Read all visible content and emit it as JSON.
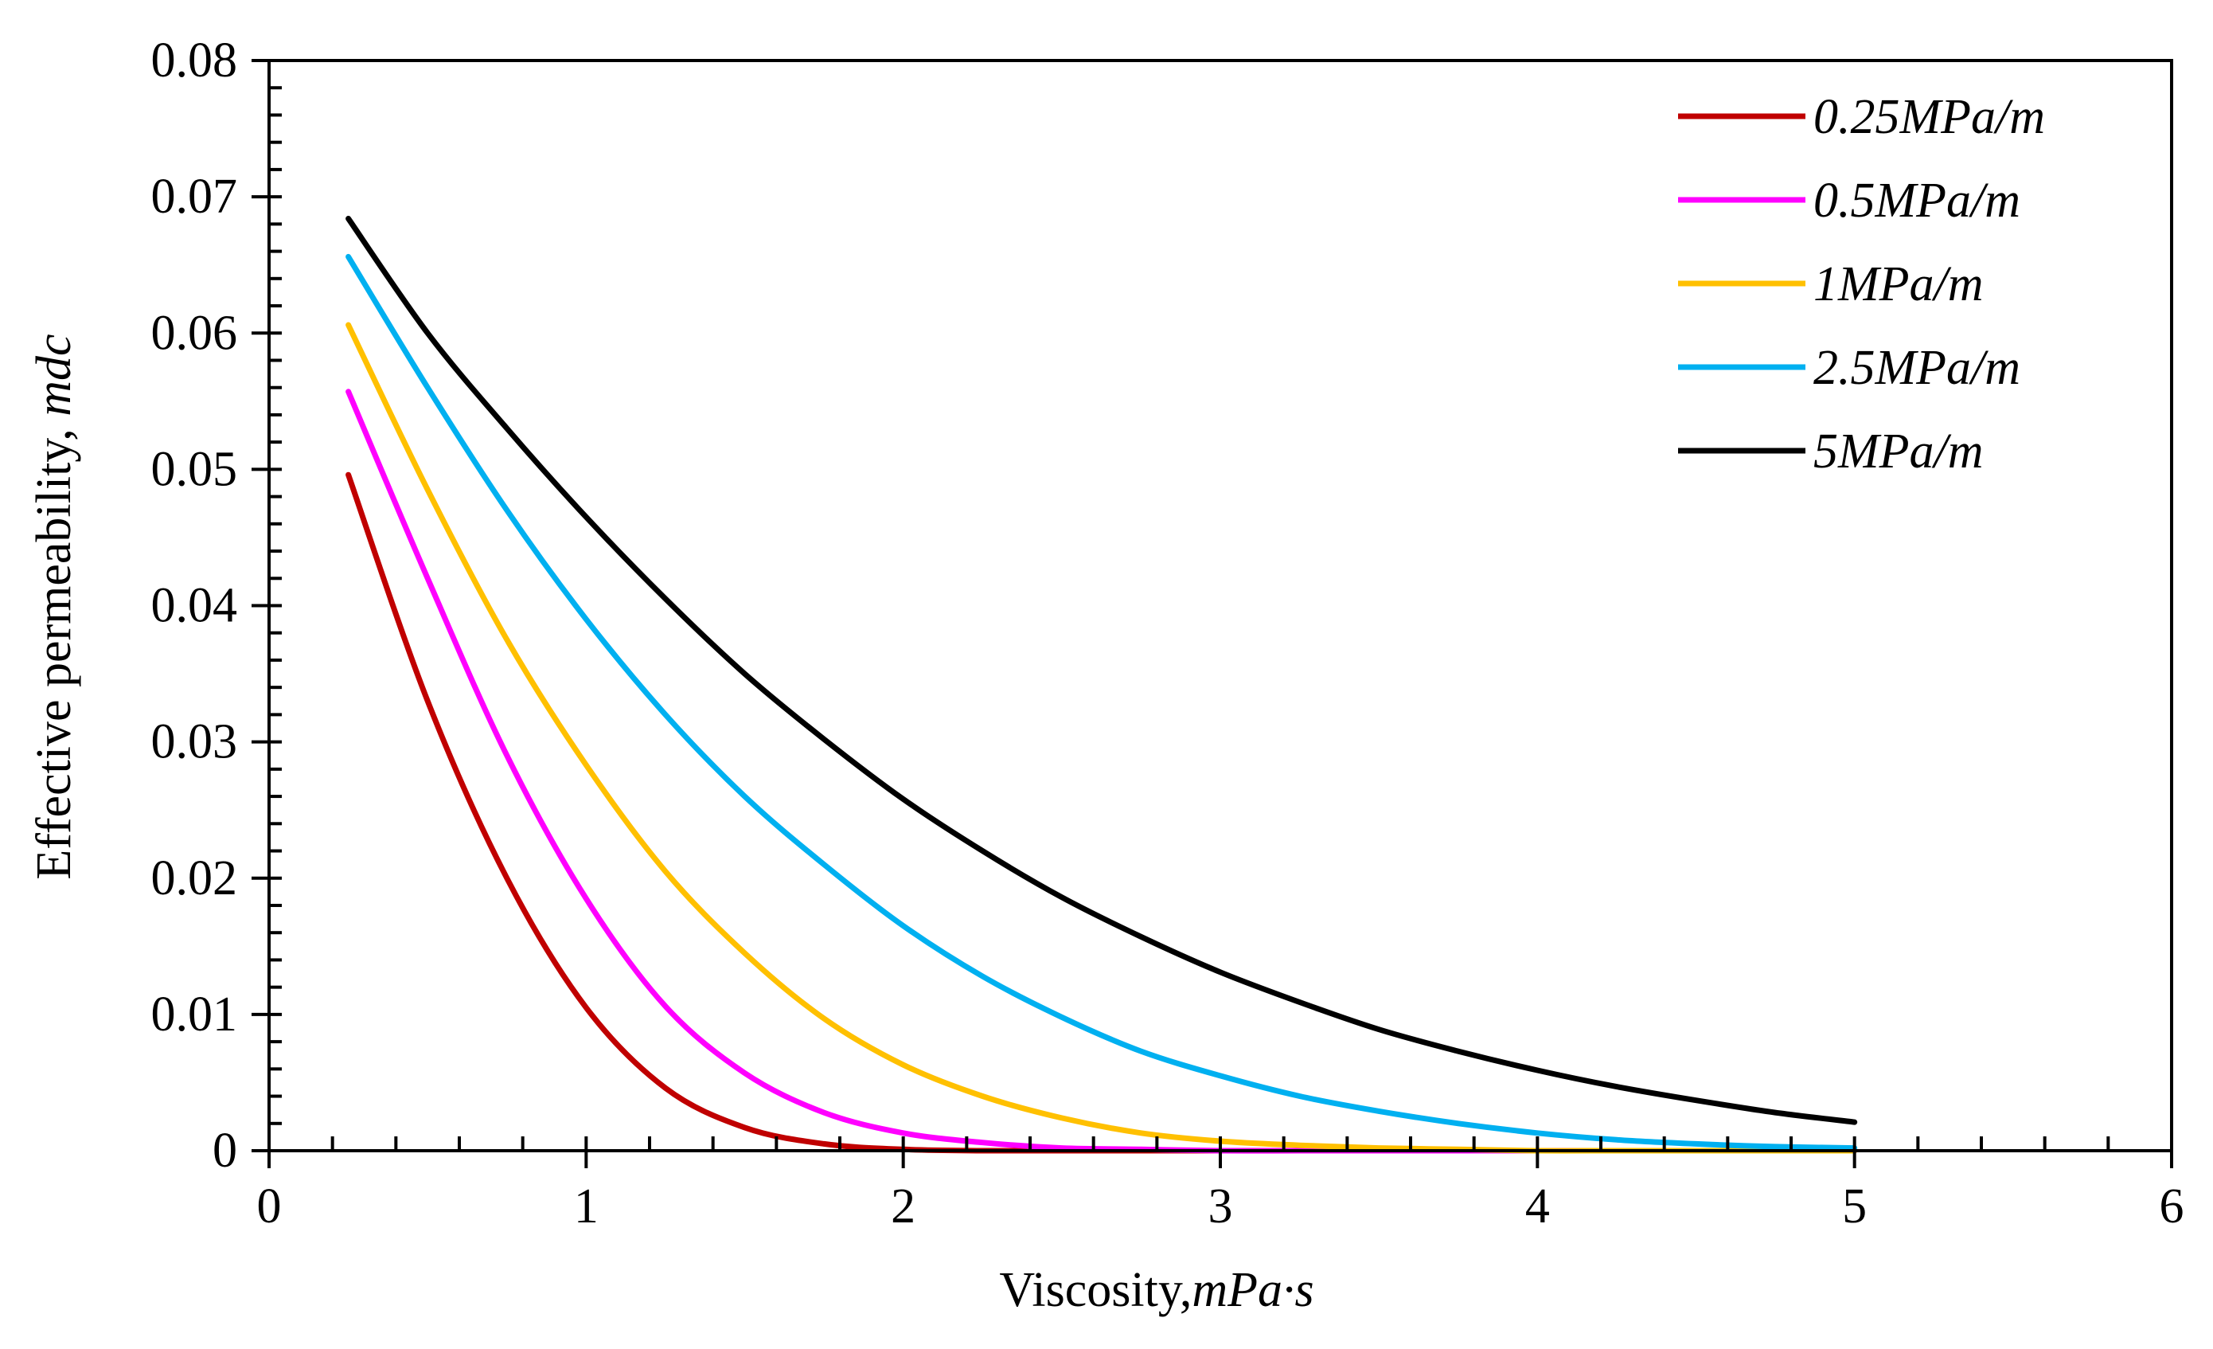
{
  "chart_data": {
    "type": "line",
    "xlabel": "Viscosity,",
    "xlabel_unit": "mPa·s",
    "ylabel": "Effective permeability,",
    "ylabel_unit": "mdc",
    "xlim": [
      0,
      6
    ],
    "ylim": [
      0,
      0.08
    ],
    "x_ticks": [
      "0",
      "1",
      "2",
      "3",
      "4",
      "5",
      "6"
    ],
    "y_ticks": [
      "0",
      "0.01",
      "0.02",
      "0.03",
      "0.04",
      "0.05",
      "0.06",
      "0.07",
      "0.08"
    ],
    "legend_position": "top-right",
    "x": [
      0.25,
      0.5,
      0.75,
      1.0,
      1.25,
      1.5,
      1.75,
      2.0,
      2.25,
      2.5,
      2.75,
      3.0,
      3.25,
      3.5,
      3.75,
      4.0,
      4.25,
      4.5,
      4.75,
      5.0
    ],
    "series": [
      {
        "name": "0.25MPa/m",
        "color": "#c00000",
        "values": [
          0.0496,
          0.033,
          0.02,
          0.0105,
          0.0046,
          0.0017,
          0.0005,
          0.0001,
          0.0,
          0.0,
          0.0,
          0.0,
          0.0,
          0.0,
          0.0,
          0.0,
          0.0,
          0.0,
          0.0,
          0.0
        ]
      },
      {
        "name": "0.5MPa/m",
        "color": "#ff00ff",
        "values": [
          0.0557,
          0.042,
          0.029,
          0.0185,
          0.0106,
          0.0057,
          0.0028,
          0.0013,
          0.0006,
          0.0002,
          0.0001,
          0.0,
          0.0,
          0.0,
          0.0,
          0.0,
          0.0,
          0.0,
          0.0,
          0.0
        ]
      },
      {
        "name": "1MPa/m",
        "color": "#ffc000",
        "values": [
          0.0606,
          0.0485,
          0.0375,
          0.0283,
          0.0205,
          0.0145,
          0.0097,
          0.0063,
          0.004,
          0.0024,
          0.0013,
          0.0007,
          0.0004,
          0.0002,
          0.0001,
          0.0,
          0.0,
          0.0,
          0.0,
          0.0
        ]
      },
      {
        "name": "2.5MPa/m",
        "color": "#00b0f0",
        "values": [
          0.0656,
          0.056,
          0.047,
          0.039,
          0.032,
          0.026,
          0.021,
          0.0165,
          0.0128,
          0.0098,
          0.0073,
          0.0055,
          0.004,
          0.0029,
          0.002,
          0.0013,
          0.0008,
          0.0005,
          0.0003,
          0.0002
        ]
      },
      {
        "name": "5MPa/m",
        "color": "#000000",
        "values": [
          0.0684,
          0.06,
          0.053,
          0.0465,
          0.0405,
          0.035,
          0.0302,
          0.0258,
          0.022,
          0.0186,
          0.0157,
          0.0131,
          0.0109,
          0.0089,
          0.0073,
          0.0059,
          0.0047,
          0.0037,
          0.0028,
          0.0021
        ]
      }
    ]
  }
}
